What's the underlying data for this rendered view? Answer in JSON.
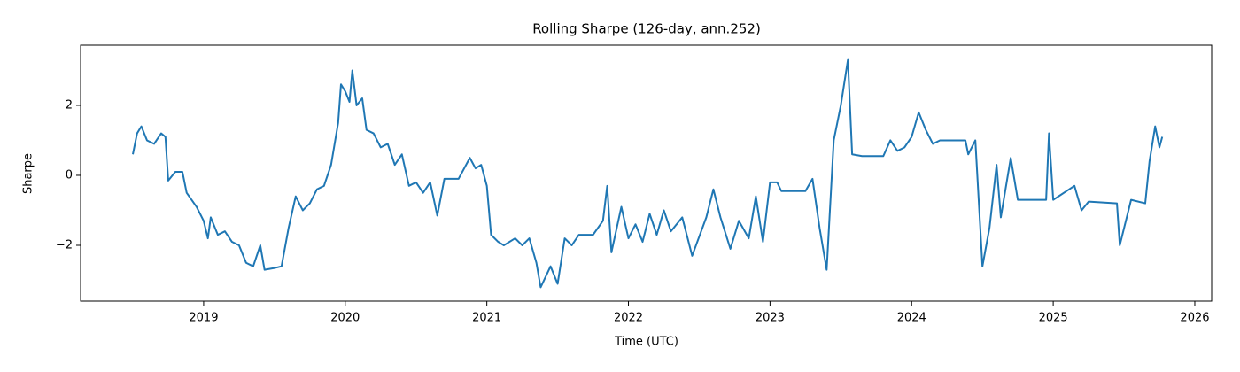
{
  "chart_data": {
    "type": "line",
    "title": "Rolling Sharpe (126-day, ann.252)",
    "xlabel": "Time (UTC)",
    "ylabel": "Sharpe",
    "color": "#1f77b4",
    "grid": false,
    "xlim": [
      2018.131,
      2026.119
    ],
    "ylim": [
      -3.595,
      3.72
    ],
    "xticks": [
      2019,
      2020,
      2021,
      2022,
      2023,
      2024,
      2025,
      2026
    ],
    "yticks": [
      {
        "value": -2,
        "label": "−2"
      },
      0,
      2
    ],
    "x": [
      2018.5,
      2018.53,
      2018.56,
      2018.6,
      2018.65,
      2018.7,
      2018.73,
      2018.75,
      2018.8,
      2018.85,
      2018.88,
      2018.95,
      2019.0,
      2019.03,
      2019.05,
      2019.1,
      2019.15,
      2019.2,
      2019.25,
      2019.3,
      2019.35,
      2019.4,
      2019.43,
      2019.5,
      2019.55,
      2019.6,
      2019.65,
      2019.7,
      2019.75,
      2019.8,
      2019.85,
      2019.9,
      2019.95,
      2019.97,
      2020.0,
      2020.03,
      2020.05,
      2020.08,
      2020.12,
      2020.15,
      2020.2,
      2020.25,
      2020.3,
      2020.35,
      2020.4,
      2020.45,
      2020.5,
      2020.55,
      2020.6,
      2020.65,
      2020.7,
      2020.8,
      2020.88,
      2020.92,
      2020.96,
      2021.0,
      2021.03,
      2021.08,
      2021.12,
      2021.2,
      2021.25,
      2021.3,
      2021.35,
      2021.38,
      2021.45,
      2021.5,
      2021.55,
      2021.6,
      2021.65,
      2021.75,
      2021.82,
      2021.85,
      2021.88,
      2021.95,
      2022.0,
      2022.05,
      2022.1,
      2022.15,
      2022.2,
      2022.25,
      2022.3,
      2022.38,
      2022.45,
      2022.55,
      2022.6,
      2022.65,
      2022.72,
      2022.78,
      2022.85,
      2022.9,
      2022.95,
      2023.0,
      2023.05,
      2023.08,
      2023.25,
      2023.3,
      2023.35,
      2023.4,
      2023.45,
      2023.5,
      2023.55,
      2023.58,
      2023.65,
      2023.8,
      2023.85,
      2023.9,
      2023.95,
      2024.0,
      2024.05,
      2024.1,
      2024.15,
      2024.2,
      2024.38,
      2024.4,
      2024.45,
      2024.5,
      2024.55,
      2024.6,
      2024.63,
      2024.7,
      2024.75,
      2024.95,
      2024.97,
      2025.0,
      2025.15,
      2025.2,
      2025.25,
      2025.45,
      2025.47,
      2025.55,
      2025.65,
      2025.68,
      2025.72,
      2025.75,
      2025.77
    ],
    "values": [
      0.6,
      1.2,
      1.4,
      1.0,
      0.9,
      1.2,
      1.1,
      -0.15,
      0.1,
      0.1,
      -0.5,
      -0.9,
      -1.3,
      -1.8,
      -1.2,
      -1.7,
      -1.6,
      -1.9,
      -2.0,
      -2.5,
      -2.6,
      -2.0,
      -2.7,
      -2.65,
      -2.6,
      -1.5,
      -0.6,
      -1.0,
      -0.8,
      -0.4,
      -0.3,
      0.3,
      1.5,
      2.6,
      2.4,
      2.1,
      3.0,
      2.0,
      2.2,
      1.3,
      1.2,
      0.8,
      0.9,
      0.3,
      0.6,
      -0.3,
      -0.2,
      -0.5,
      -0.2,
      -1.15,
      -0.1,
      -0.1,
      0.5,
      0.2,
      0.3,
      -0.3,
      -1.7,
      -1.9,
      -2.0,
      -1.8,
      -2.0,
      -1.8,
      -2.5,
      -3.2,
      -2.6,
      -3.1,
      -1.8,
      -2.0,
      -1.7,
      -1.7,
      -1.3,
      -0.3,
      -2.2,
      -0.9,
      -1.8,
      -1.4,
      -1.9,
      -1.1,
      -1.7,
      -1.0,
      -1.6,
      -1.2,
      -2.3,
      -1.2,
      -0.4,
      -1.2,
      -2.1,
      -1.3,
      -1.8,
      -0.6,
      -1.9,
      -0.2,
      -0.2,
      -0.45,
      -0.45,
      -0.1,
      -1.5,
      -2.7,
      1.0,
      2.0,
      3.3,
      0.6,
      0.55,
      0.55,
      1.0,
      0.7,
      0.8,
      1.1,
      1.8,
      1.3,
      0.9,
      1.0,
      1.0,
      0.6,
      1.0,
      -2.6,
      -1.5,
      0.3,
      -1.2,
      0.5,
      -0.7,
      -0.7,
      1.2,
      -0.7,
      -0.3,
      -1.0,
      -0.75,
      -0.8,
      -2.0,
      -0.7,
      -0.8,
      0.4,
      1.4,
      0.8,
      1.1
    ]
  }
}
